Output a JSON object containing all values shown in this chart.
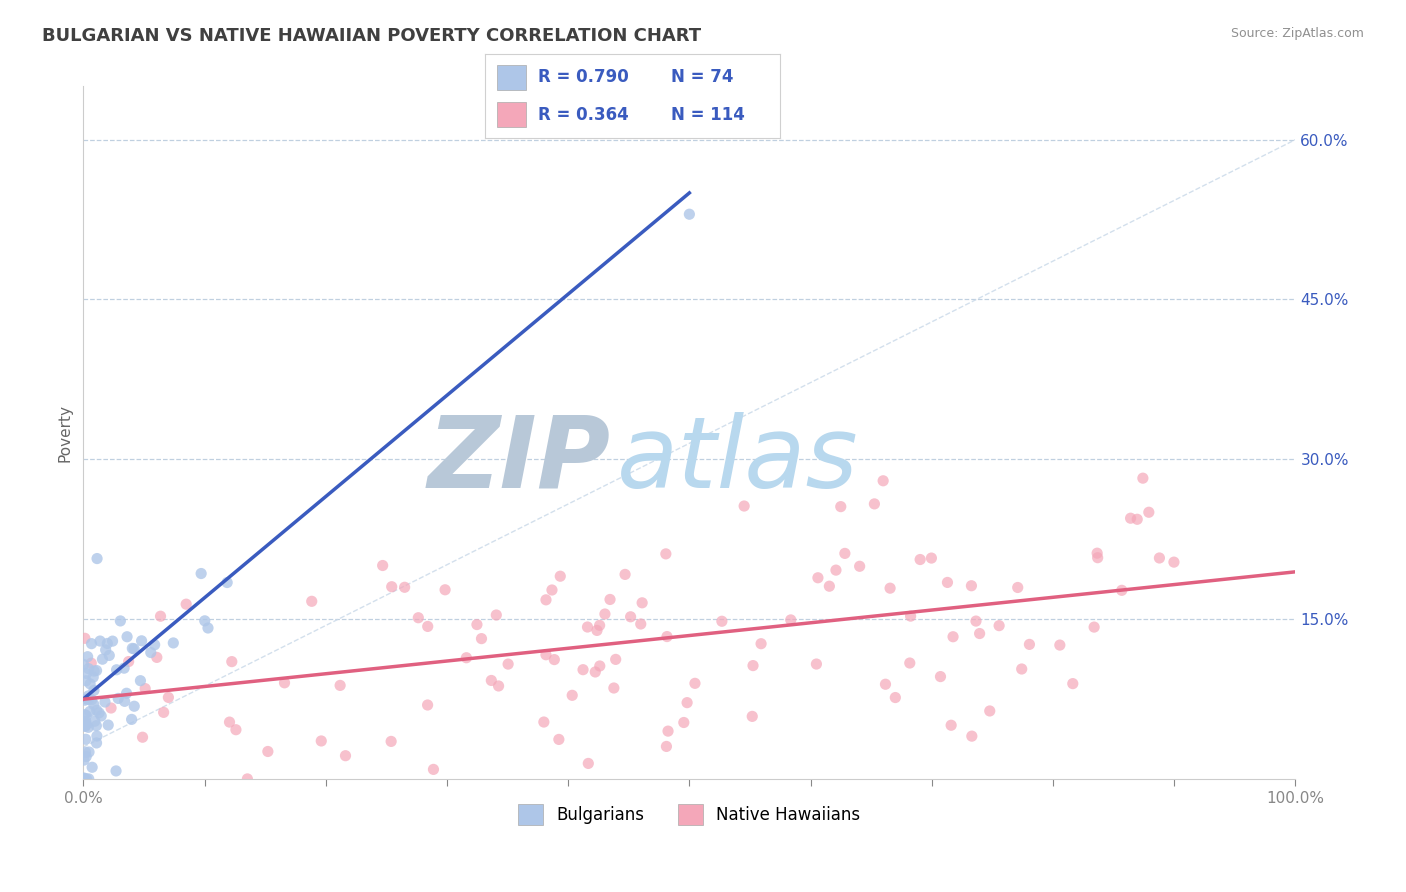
{
  "title": "BULGARIAN VS NATIVE HAWAIIAN POVERTY CORRELATION CHART",
  "source_text": "Source: ZipAtlas.com",
  "ylabel": "Poverty",
  "xlim": [
    0.0,
    1.0
  ],
  "ylim": [
    0.0,
    0.65
  ],
  "x_ticks": [
    0.0,
    0.1,
    0.2,
    0.3,
    0.4,
    0.5,
    0.6,
    0.7,
    0.8,
    0.9,
    1.0
  ],
  "x_tick_labels": [
    "0.0%",
    "",
    "",
    "",
    "",
    "",
    "",
    "",
    "",
    "",
    "100.0%"
  ],
  "y_tick_labels_right": [
    "15.0%",
    "30.0%",
    "45.0%",
    "60.0%"
  ],
  "y_ticks_right": [
    0.15,
    0.3,
    0.45,
    0.6
  ],
  "bulgarian_R": 0.79,
  "bulgarian_N": 74,
  "hawaiian_R": 0.364,
  "hawaiian_N": 114,
  "bulgarian_color": "#aec6e8",
  "hawaiian_color": "#f4a7b9",
  "bulgarian_line_color": "#3a5bbf",
  "hawaiian_line_color": "#e06080",
  "ref_line_color": "#c8d8e8",
  "watermark_zip_color": "#b8c8d8",
  "watermark_atlas_color": "#b8d8ee",
  "background_color": "#ffffff",
  "grid_color": "#c0d0e0",
  "title_color": "#404040",
  "source_color": "#909090",
  "legend_value_color": "#3a5bbf",
  "legend_label_color": "#333333"
}
